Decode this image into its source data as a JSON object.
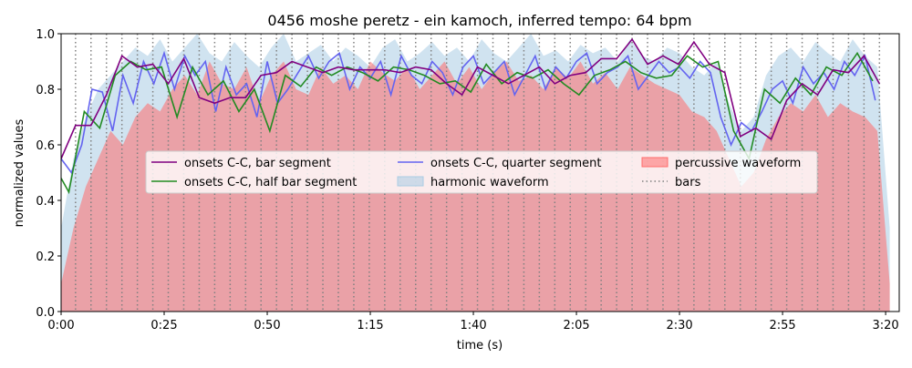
{
  "chart_data": {
    "type": "line",
    "title": "0456 moshe peretz - ein kamoch, inferred tempo: 64 bpm",
    "xlabel": "time (s)",
    "ylabel": "normalized values",
    "xlim": [
      0,
      203.3
    ],
    "ylim": [
      0,
      1.0
    ],
    "xticks": [
      {
        "value": 0,
        "label": "0:00"
      },
      {
        "value": 25,
        "label": "0:25"
      },
      {
        "value": 50,
        "label": "0:50"
      },
      {
        "value": 75,
        "label": "1:15"
      },
      {
        "value": 100,
        "label": "1:40"
      },
      {
        "value": 125,
        "label": "2:05"
      },
      {
        "value": 150,
        "label": "2:30"
      },
      {
        "value": 175,
        "label": "2:55"
      },
      {
        "value": 200,
        "label": "3:20"
      }
    ],
    "yticks": [
      {
        "value": 0,
        "label": "0.0"
      },
      0.2,
      0.4,
      0.6,
      0.8,
      {
        "value": 1,
        "label": "1.0"
      }
    ],
    "series": [
      {
        "name": "onsets C-C, bar segment",
        "kind": "line",
        "color": "#800080",
        "x": [
          0,
          3.5,
          7.25,
          11,
          14.75,
          18.5,
          22.25,
          26,
          29.75,
          33.5,
          37.25,
          41,
          44.75,
          48.5,
          52.25,
          56,
          59.75,
          63.5,
          67.25,
          71,
          74.75,
          78.5,
          82.25,
          86,
          89.75,
          93.5,
          97.25,
          101,
          104.75,
          108.5,
          112.25,
          116,
          119.75,
          123.5,
          127.25,
          131,
          134.75,
          138.5,
          142.25,
          146,
          149.75,
          153.5,
          157.25,
          161,
          164.75,
          168.5,
          172.25,
          176,
          179.75,
          183.5,
          187.25,
          191,
          194.75,
          198.5
        ],
        "values": [
          0.55,
          0.67,
          0.67,
          0.78,
          0.92,
          0.88,
          0.89,
          0.82,
          0.91,
          0.77,
          0.75,
          0.77,
          0.77,
          0.85,
          0.86,
          0.9,
          0.88,
          0.86,
          0.88,
          0.87,
          0.87,
          0.87,
          0.86,
          0.88,
          0.87,
          0.82,
          0.78,
          0.88,
          0.85,
          0.82,
          0.85,
          0.88,
          0.82,
          0.85,
          0.86,
          0.91,
          0.91,
          0.98,
          0.89,
          0.92,
          0.89,
          0.97,
          0.89,
          0.86,
          0.63,
          0.66,
          0.62,
          0.76,
          0.82,
          0.78,
          0.87,
          0.86,
          0.92,
          0.82
        ]
      },
      {
        "name": "onsets C-C, half bar segment",
        "kind": "line",
        "color": "#228b22",
        "x": [
          0,
          1.875,
          5.625,
          9.375,
          13.125,
          16.875,
          20.625,
          24.375,
          28.125,
          31.875,
          35.625,
          39.375,
          43.125,
          46.875,
          50.625,
          54.375,
          58.125,
          61.875,
          65.625,
          69.375,
          73.125,
          76.875,
          80.625,
          84.375,
          88.125,
          91.875,
          95.625,
          99.375,
          103.125,
          106.875,
          110.625,
          114.375,
          118.125,
          121.875,
          125.625,
          129.375,
          133.125,
          136.875,
          140.625,
          144.375,
          148.125,
          151.875,
          155.625,
          159.375,
          163.125,
          166.875,
          170.625,
          174.375,
          178.125,
          181.875,
          185.625,
          189.375,
          193.125,
          196.875
        ],
        "values": [
          0.48,
          0.43,
          0.72,
          0.66,
          0.85,
          0.9,
          0.87,
          0.88,
          0.7,
          0.88,
          0.78,
          0.83,
          0.72,
          0.8,
          0.65,
          0.85,
          0.81,
          0.88,
          0.85,
          0.88,
          0.86,
          0.83,
          0.88,
          0.87,
          0.85,
          0.82,
          0.83,
          0.79,
          0.89,
          0.82,
          0.86,
          0.84,
          0.87,
          0.82,
          0.78,
          0.85,
          0.87,
          0.9,
          0.86,
          0.84,
          0.85,
          0.92,
          0.88,
          0.9,
          0.65,
          0.55,
          0.8,
          0.75,
          0.84,
          0.78,
          0.88,
          0.85,
          0.93,
          0.83
        ]
      },
      {
        "name": "onsets C-C, quarter segment",
        "kind": "line",
        "color": "#6464f0",
        "x": [
          0,
          2.5,
          5,
          7.5,
          10,
          12.5,
          15,
          17.5,
          20,
          22.5,
          25,
          27.5,
          30,
          32.5,
          35,
          37.5,
          40,
          42.5,
          45,
          47.5,
          50,
          52.5,
          55,
          57.5,
          60,
          62.5,
          65,
          67.5,
          70,
          72.5,
          75,
          77.5,
          80,
          82.5,
          85,
          87.5,
          90,
          92.5,
          95,
          97.5,
          100,
          102.5,
          105,
          107.5,
          110,
          112.5,
          115,
          117.5,
          120,
          122.5,
          125,
          127.5,
          130,
          132.5,
          135,
          137.5,
          140,
          142.5,
          145,
          147.5,
          150,
          152.5,
          155,
          157.5,
          160,
          162.5,
          165,
          167.5,
          170,
          172.5,
          175,
          177.5,
          180,
          182.5,
          185,
          187.5,
          190,
          192.5,
          195,
          197.5
        ],
        "values": [
          0.55,
          0.5,
          0.6,
          0.8,
          0.79,
          0.65,
          0.85,
          0.75,
          0.9,
          0.82,
          0.93,
          0.8,
          0.92,
          0.85,
          0.9,
          0.72,
          0.88,
          0.78,
          0.82,
          0.7,
          0.9,
          0.75,
          0.8,
          0.86,
          0.92,
          0.84,
          0.9,
          0.93,
          0.8,
          0.88,
          0.84,
          0.9,
          0.78,
          0.92,
          0.85,
          0.82,
          0.9,
          0.86,
          0.78,
          0.88,
          0.92,
          0.82,
          0.86,
          0.9,
          0.78,
          0.85,
          0.92,
          0.8,
          0.88,
          0.84,
          0.9,
          0.93,
          0.82,
          0.86,
          0.88,
          0.92,
          0.8,
          0.85,
          0.9,
          0.86,
          0.88,
          0.84,
          0.9,
          0.86,
          0.7,
          0.6,
          0.68,
          0.65,
          0.72,
          0.8,
          0.83,
          0.75,
          0.88,
          0.82,
          0.86,
          0.8,
          0.9,
          0.85,
          0.92,
          0.76
        ]
      },
      {
        "name": "harmonic waveform",
        "kind": "area",
        "color": "#a9cce3",
        "x": [
          0,
          3,
          6,
          9,
          12,
          15,
          18,
          21,
          24,
          27,
          30,
          33,
          36,
          39,
          42,
          45,
          48,
          51,
          54,
          57,
          60,
          63,
          66,
          69,
          72,
          75,
          78,
          81,
          84,
          87,
          90,
          93,
          96,
          99,
          102,
          105,
          108,
          111,
          114,
          117,
          120,
          123,
          126,
          129,
          132,
          135,
          138,
          141,
          144,
          147,
          150,
          153,
          156,
          159,
          162,
          165,
          168,
          171,
          174,
          177,
          180,
          183,
          186,
          189,
          192,
          195,
          198,
          201
        ],
        "values": [
          0.3,
          0.55,
          0.7,
          0.8,
          0.85,
          0.9,
          0.95,
          0.92,
          0.98,
          0.9,
          0.95,
          1.0,
          0.93,
          0.9,
          0.97,
          0.92,
          0.88,
          0.95,
          1.0,
          0.9,
          0.93,
          0.96,
          0.9,
          0.95,
          0.92,
          0.88,
          0.95,
          0.98,
          0.9,
          0.93,
          0.97,
          0.92,
          0.95,
          0.9,
          0.98,
          0.93,
          0.9,
          0.95,
          1.0,
          0.92,
          0.94,
          0.9,
          0.96,
          0.93,
          0.95,
          0.9,
          0.98,
          0.92,
          0.9,
          0.95,
          0.93,
          0.88,
          0.85,
          0.9,
          0.75,
          0.65,
          0.7,
          0.85,
          0.92,
          0.95,
          0.9,
          0.97,
          0.93,
          0.9,
          0.98,
          0.92,
          0.88,
          0.3
        ]
      },
      {
        "name": "percussive waveform",
        "kind": "area",
        "color": "#ff6b6b",
        "x": [
          0,
          3,
          6,
          9,
          12,
          15,
          18,
          21,
          24,
          27,
          30,
          33,
          36,
          39,
          42,
          45,
          48,
          51,
          54,
          57,
          60,
          63,
          66,
          69,
          72,
          75,
          78,
          81,
          84,
          87,
          90,
          93,
          96,
          99,
          102,
          105,
          108,
          111,
          114,
          117,
          120,
          123,
          126,
          129,
          132,
          135,
          138,
          141,
          144,
          147,
          150,
          153,
          156,
          159,
          162,
          165,
          168,
          171,
          174,
          177,
          180,
          183,
          186,
          189,
          192,
          195,
          198,
          201
        ],
        "values": [
          0.1,
          0.3,
          0.45,
          0.55,
          0.65,
          0.6,
          0.7,
          0.75,
          0.72,
          0.8,
          0.85,
          0.78,
          0.9,
          0.82,
          0.8,
          0.88,
          0.75,
          0.85,
          0.9,
          0.8,
          0.78,
          0.88,
          0.82,
          0.85,
          0.8,
          0.9,
          0.86,
          0.83,
          0.88,
          0.8,
          0.85,
          0.9,
          0.82,
          0.88,
          0.8,
          0.86,
          0.9,
          0.83,
          0.85,
          0.8,
          0.88,
          0.84,
          0.9,
          0.82,
          0.86,
          0.8,
          0.88,
          0.85,
          0.82,
          0.8,
          0.78,
          0.72,
          0.7,
          0.65,
          0.55,
          0.45,
          0.5,
          0.62,
          0.7,
          0.75,
          0.72,
          0.78,
          0.7,
          0.75,
          0.72,
          0.7,
          0.65,
          0.1
        ]
      },
      {
        "name": "bars",
        "kind": "vlines",
        "color": "#808080",
        "x": [
          3.5,
          7.25,
          11,
          14.75,
          18.5,
          22.25,
          26,
          29.75,
          33.5,
          37.25,
          41,
          44.75,
          48.5,
          52.25,
          56,
          59.75,
          63.5,
          67.25,
          71,
          74.75,
          78.5,
          82.25,
          86,
          89.75,
          93.5,
          97.25,
          101,
          104.75,
          108.5,
          112.25,
          116,
          119.75,
          123.5,
          127.25,
          131,
          134.75,
          138.5,
          142.25,
          146,
          149.75,
          153.5,
          157.25,
          161,
          164.75,
          168.5,
          172.25,
          176,
          179.75,
          183.5,
          187.25,
          191,
          194.75,
          198.5
        ]
      }
    ]
  }
}
